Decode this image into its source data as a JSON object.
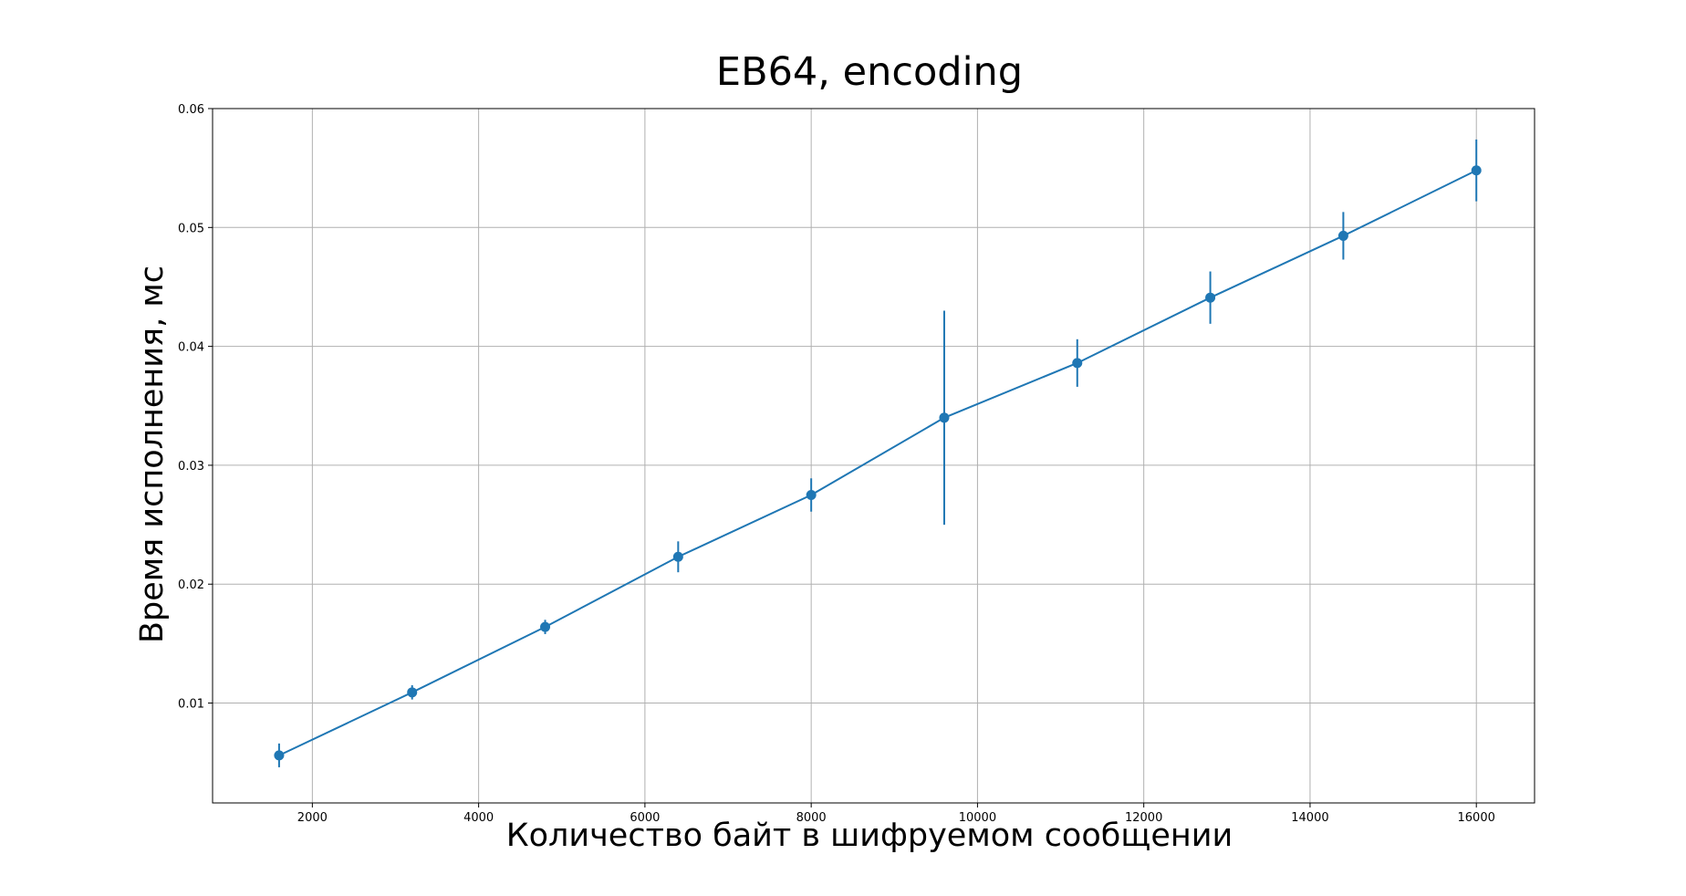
{
  "chart_data": {
    "type": "line",
    "title": "EB64, encoding",
    "xlabel": "Количество байт в шифруемом сообщении",
    "ylabel": "Время исполнения, мс",
    "xlim": [
      800,
      16700
    ],
    "ylim": [
      0.0016,
      0.06
    ],
    "grid": true,
    "legend": "none",
    "x_ticks": [
      2000,
      4000,
      6000,
      8000,
      10000,
      12000,
      14000,
      16000
    ],
    "x_tick_labels": [
      "2000",
      "4000",
      "6000",
      "8000",
      "10000",
      "12000",
      "14000",
      "16000"
    ],
    "y_ticks": [
      0.01,
      0.02,
      0.03,
      0.04,
      0.05,
      0.06
    ],
    "y_tick_labels": [
      "0.01",
      "0.02",
      "0.03",
      "0.04",
      "0.05",
      "0.06"
    ],
    "series": [
      {
        "color": "#1f77b4",
        "marker": "circle",
        "error_bars": true,
        "x": [
          1600,
          3200,
          4800,
          6400,
          8000,
          9600,
          11200,
          12800,
          14400,
          16000
        ],
        "y": [
          0.0056,
          0.0109,
          0.0164,
          0.0223,
          0.0275,
          0.034,
          0.0386,
          0.0441,
          0.0493,
          0.0548
        ],
        "yerr": [
          0.001,
          0.0006,
          0.0006,
          0.0013,
          0.0014,
          0.009,
          0.002,
          0.0022,
          0.002,
          0.0026
        ]
      }
    ]
  }
}
